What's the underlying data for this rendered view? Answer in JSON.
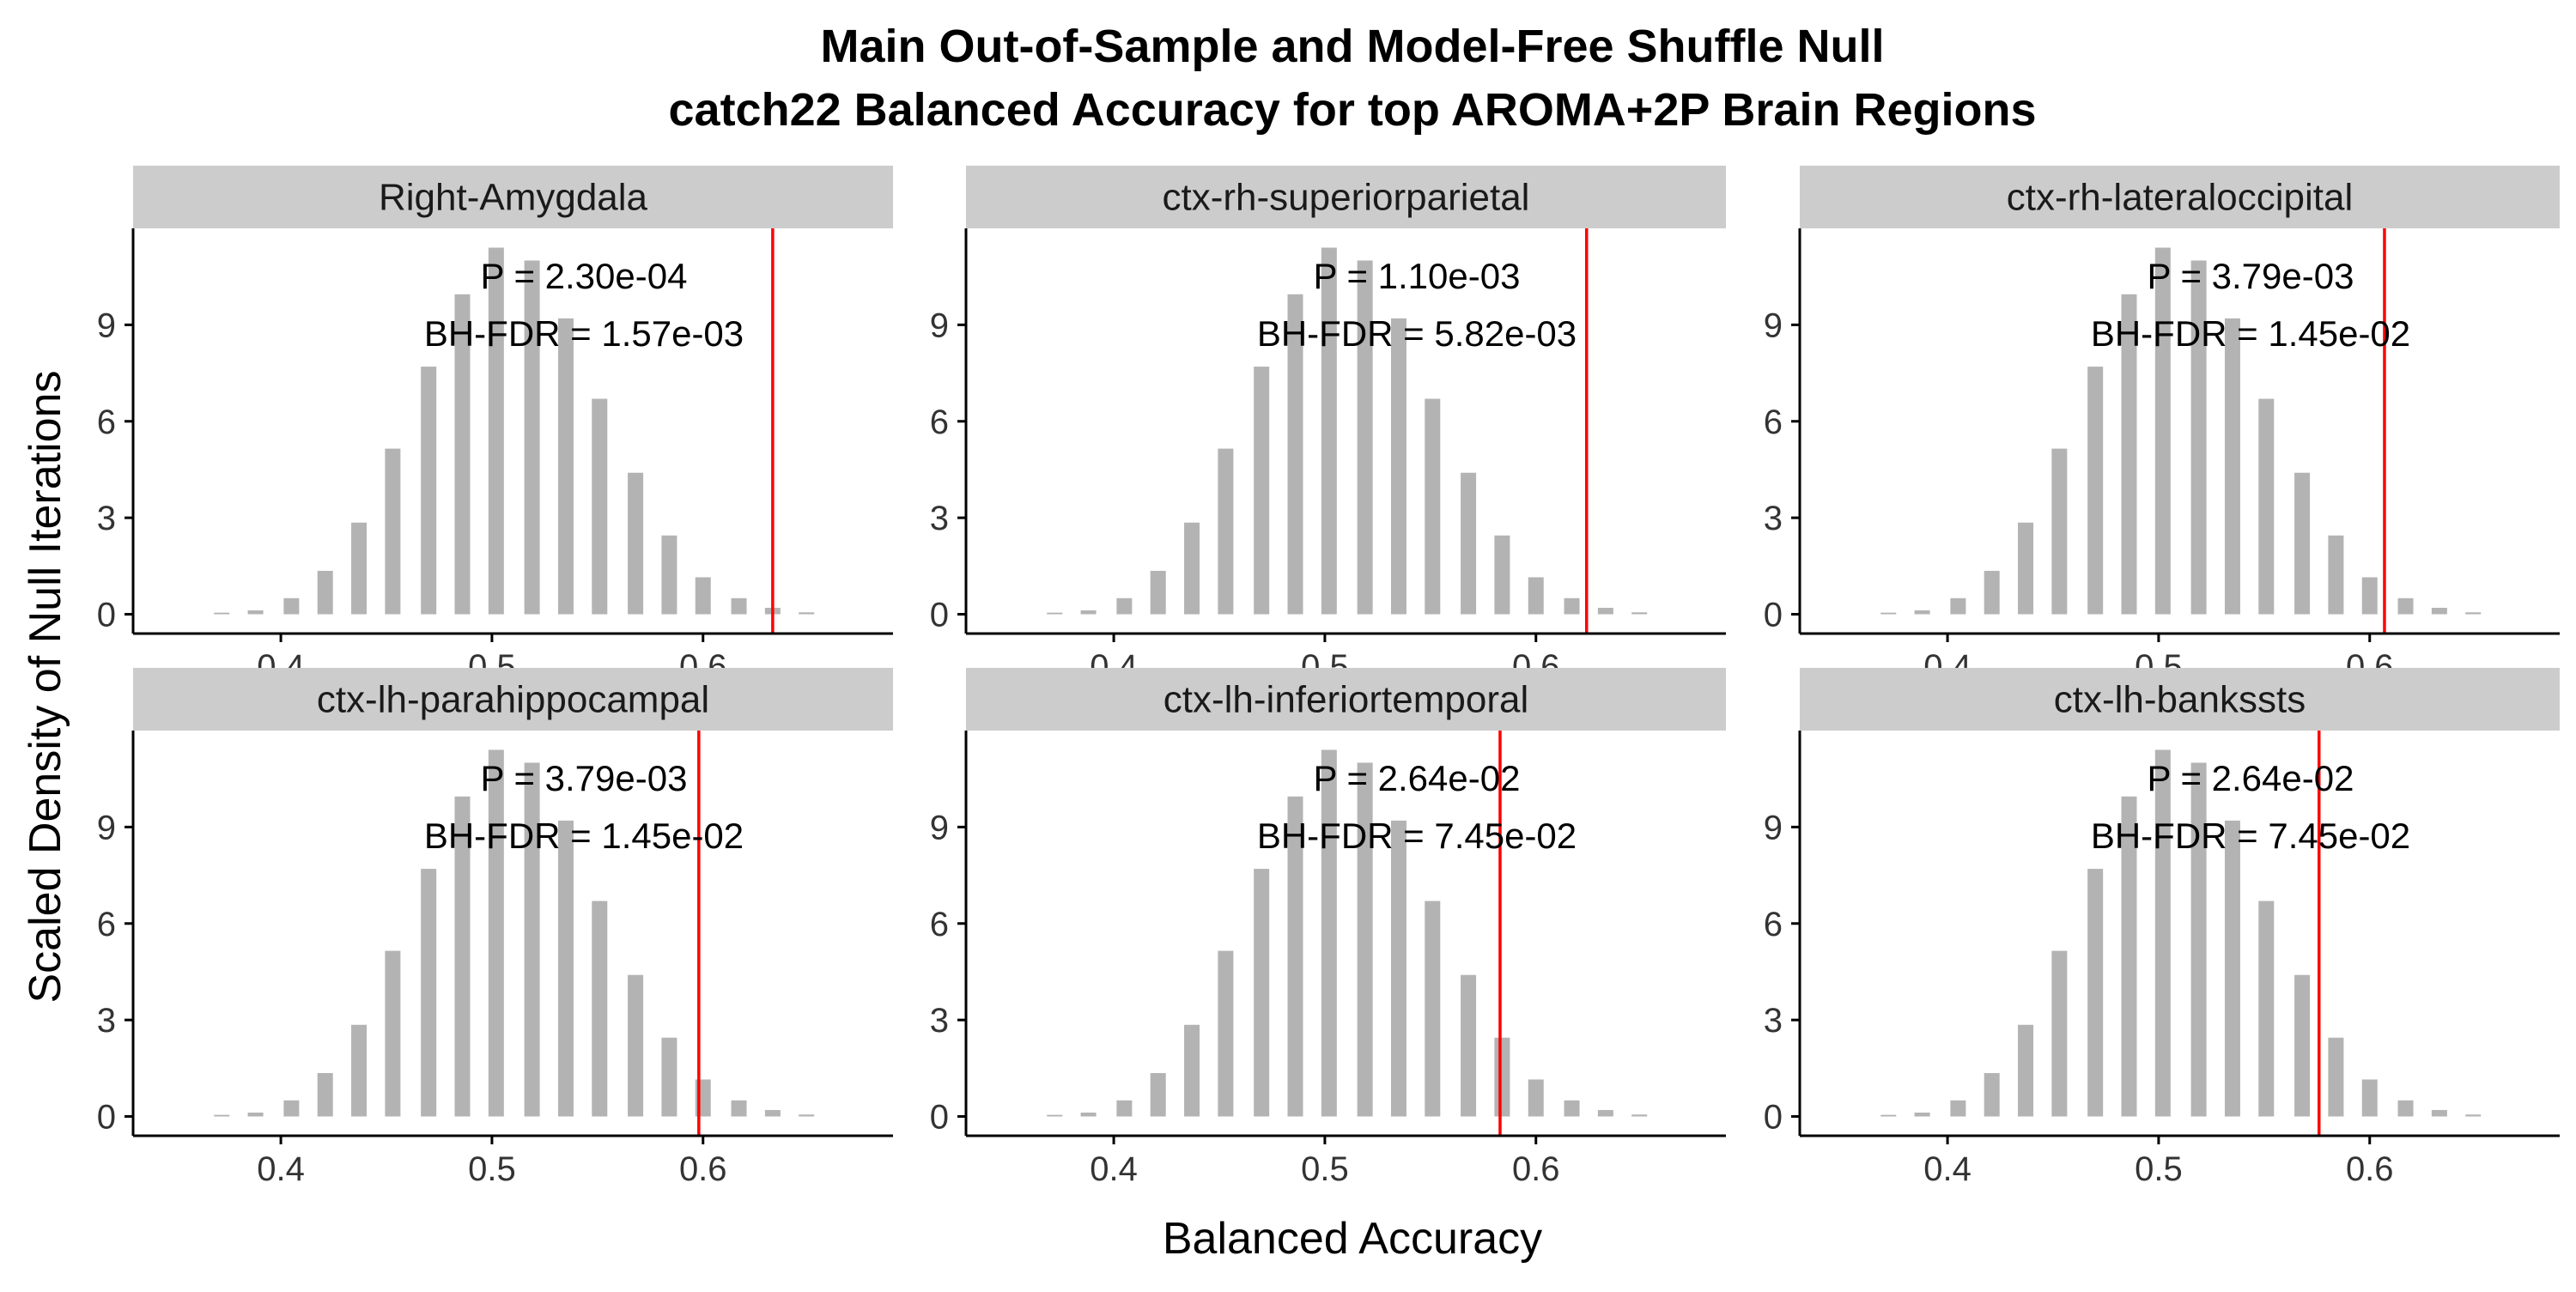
{
  "chart_data": {
    "type": "bar",
    "title_line1": "Main Out-of-Sample and Model-Free Shuffle Null",
    "title_line2": "catch22 Balanced Accuracy for top AROMA+2P Brain Regions",
    "xlabel": "Balanced Accuracy",
    "ylabel": "Scaled Density of Null Iterations",
    "xlim": [
      0.33,
      0.69
    ],
    "ylim": [
      -0.6,
      12.0
    ],
    "x_ticks": [
      0.4,
      0.5,
      0.6
    ],
    "x_tick_labels": [
      "0.4",
      "0.5",
      "0.6"
    ],
    "y_ticks": [
      0,
      3,
      6,
      9
    ],
    "y_tick_labels": [
      "0",
      "3",
      "6",
      "9"
    ],
    "colors": {
      "bar": "#b3b3b3",
      "observed_line": "#ff0000",
      "strip": "#cccccc"
    },
    "null_distribution": {
      "x": [
        0.372,
        0.388,
        0.405,
        0.421,
        0.437,
        0.453,
        0.47,
        0.486,
        0.502,
        0.519,
        0.535,
        0.551,
        0.568,
        0.584,
        0.6,
        0.617,
        0.633,
        0.649
      ],
      "y": [
        0.05,
        0.12,
        0.5,
        1.35,
        2.85,
        5.15,
        7.7,
        9.95,
        11.4,
        11.0,
        9.2,
        6.7,
        4.4,
        2.45,
        1.15,
        0.5,
        0.2,
        0.06
      ]
    },
    "panels": [
      {
        "region": "Right-Amygdala",
        "observed": 0.633,
        "p_text": "P = 2.30e-04",
        "fdr_text": "BH-FDR = 1.57e-03"
      },
      {
        "region": "ctx-rh-superiorparietal",
        "observed": 0.624,
        "p_text": "P = 1.10e-03",
        "fdr_text": "BH-FDR = 5.82e-03"
      },
      {
        "region": "ctx-rh-lateraloccipital",
        "observed": 0.607,
        "p_text": "P = 3.79e-03",
        "fdr_text": "BH-FDR = 1.45e-02"
      },
      {
        "region": "ctx-lh-parahippocampal",
        "observed": 0.598,
        "p_text": "P = 3.79e-03",
        "fdr_text": "BH-FDR = 1.45e-02"
      },
      {
        "region": "ctx-lh-inferiortemporal",
        "observed": 0.583,
        "p_text": "P = 2.64e-02",
        "fdr_text": "BH-FDR = 7.45e-02"
      },
      {
        "region": "ctx-lh-bankssts",
        "observed": 0.576,
        "p_text": "P = 2.64e-02",
        "fdr_text": "BH-FDR = 7.45e-02"
      }
    ]
  }
}
